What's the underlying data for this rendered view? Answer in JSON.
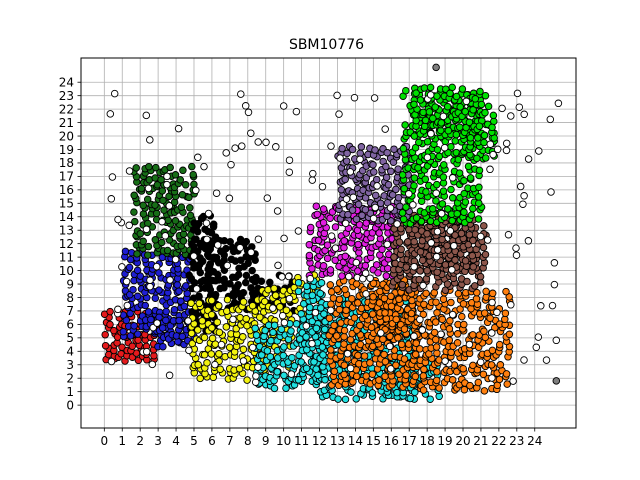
{
  "chart_data": {
    "type": "scatter",
    "title": "SBM10776",
    "xlabel": "",
    "ylabel": "",
    "xlim": [
      -1.3,
      26.3
    ],
    "ylim": [
      -1.7,
      25.8
    ],
    "x_ticks": [
      "0",
      "1",
      "2",
      "3",
      "4",
      "5",
      "6",
      "7",
      "8",
      "9",
      "10",
      "11",
      "12",
      "13",
      "14",
      "15",
      "16",
      "17",
      "18",
      "19",
      "20",
      "21",
      "22",
      "23",
      "24"
    ],
    "y_ticks": [
      "0",
      "1",
      "2",
      "3",
      "4",
      "5",
      "6",
      "7",
      "8",
      "9",
      "10",
      "11",
      "12",
      "13",
      "14",
      "15",
      "16",
      "17",
      "18",
      "19",
      "20",
      "21",
      "22",
      "23",
      "24"
    ],
    "grid": true,
    "legend": "none",
    "marker_edge_color": "#000000",
    "series": [
      {
        "color": "#e41a1c",
        "regions": [
          [
            0.1,
            3.4,
            3.0,
            7.1
          ]
        ],
        "density": 0.9
      },
      {
        "color": "#1f1fd1",
        "regions": [
          [
            1.2,
            5.2,
            4.9,
            11.6
          ],
          [
            3.0,
            4.5,
            5.0,
            6.5
          ]
        ],
        "density": 0.9
      },
      {
        "color": "#176e17",
        "regions": [
          [
            1.8,
            11.2,
            4.9,
            18.0
          ]
        ],
        "density": 0.9
      },
      {
        "color": "#000000",
        "regions": [
          [
            4.9,
            5.6,
            6.1,
            14.0
          ],
          [
            6.0,
            7.2,
            8.6,
            12.4
          ],
          [
            8.5,
            7.2,
            10.5,
            9.6
          ]
        ],
        "density": 0.85
      },
      {
        "color": "#f2f20f",
        "regions": [
          [
            5.0,
            2.0,
            8.8,
            7.8
          ],
          [
            8.8,
            2.5,
            10.7,
            8.8
          ],
          [
            10.7,
            6.5,
            12.2,
            9.8
          ]
        ],
        "density": 0.85
      },
      {
        "color": "#21e0e0",
        "regions": [
          [
            8.5,
            1.4,
            12.0,
            6.0
          ],
          [
            12.0,
            0.6,
            17.5,
            8.0
          ],
          [
            11.0,
            2.0,
            12.2,
            9.5
          ],
          [
            15.5,
            0.6,
            18.8,
            3.4
          ]
        ],
        "density": 0.85
      },
      {
        "color": "#ff7f0e",
        "regions": [
          [
            12.7,
            1.5,
            17.5,
            9.2
          ],
          [
            17.5,
            1.2,
            22.7,
            8.6
          ],
          [
            15.0,
            5.0,
            17.5,
            9.4
          ]
        ],
        "density": 0.85
      },
      {
        "color": "#e01ee0",
        "regions": [
          [
            11.6,
            9.7,
            16.2,
            15.0
          ]
        ],
        "density": 0.9
      },
      {
        "color": "#8c564b",
        "regions": [
          [
            16.2,
            8.7,
            21.4,
            14.0
          ],
          [
            17.0,
            10.0,
            20.5,
            14.5
          ]
        ],
        "density": 0.9
      },
      {
        "color": "#8064a2",
        "regions": [
          [
            13.2,
            13.8,
            17.2,
            19.2
          ]
        ],
        "density": 0.9
      },
      {
        "color": "#00e000",
        "regions": [
          [
            16.8,
            13.6,
            21.2,
            23.8
          ],
          [
            17.4,
            20.0,
            21.7,
            23.2
          ],
          [
            20.5,
            18.5,
            21.8,
            21.0
          ]
        ],
        "density": 0.85
      },
      {
        "color": "#ffffff",
        "regions": [
          [
            0.5,
            1.8,
            25.2,
            23.8
          ]
        ],
        "density": 0.045
      },
      {
        "color": "#7f7f7f",
        "points": [
          [
            18.5,
            25.1
          ],
          [
            25.2,
            1.8
          ]
        ]
      }
    ]
  }
}
